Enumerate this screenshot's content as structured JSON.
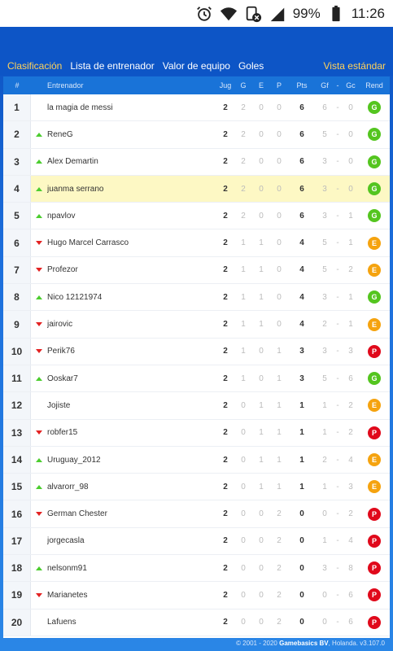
{
  "status_bar": {
    "battery": "99%",
    "time": "11:26",
    "icons": [
      "alarm-icon",
      "wifi-icon",
      "notification-blocked-icon",
      "cell-signal-icon",
      "battery-icon"
    ]
  },
  "nav": {
    "tabs": [
      "Clasificación",
      "Lista de entrenador",
      "Valor de equipo",
      "Goles"
    ],
    "active_tab": "Clasificación",
    "right_link": "Vista estándar"
  },
  "table": {
    "headers": {
      "pos": "#",
      "name": "Entrenador",
      "jug": "Jug",
      "g": "G",
      "e": "E",
      "p": "P",
      "pts": "Pts",
      "gf": "Gf",
      "sep": "-",
      "gc": "Gc",
      "rend": "Rend"
    },
    "rows": [
      {
        "pos": "1",
        "trend": "none",
        "name": "la magia de messi",
        "jug": "2",
        "g": "2",
        "e": "0",
        "p": "0",
        "pts": "6",
        "gf": "6",
        "gc": "0",
        "rend": "G"
      },
      {
        "pos": "2",
        "trend": "up",
        "name": "ReneG",
        "jug": "2",
        "g": "2",
        "e": "0",
        "p": "0",
        "pts": "6",
        "gf": "5",
        "gc": "0",
        "rend": "G"
      },
      {
        "pos": "3",
        "trend": "up",
        "name": "Alex Demartin",
        "jug": "2",
        "g": "2",
        "e": "0",
        "p": "0",
        "pts": "6",
        "gf": "3",
        "gc": "0",
        "rend": "G"
      },
      {
        "pos": "4",
        "trend": "up",
        "name": "juanma serrano",
        "jug": "2",
        "g": "2",
        "e": "0",
        "p": "0",
        "pts": "6",
        "gf": "3",
        "gc": "0",
        "rend": "G",
        "highlight": true
      },
      {
        "pos": "5",
        "trend": "up",
        "name": "npavlov",
        "jug": "2",
        "g": "2",
        "e": "0",
        "p": "0",
        "pts": "6",
        "gf": "3",
        "gc": "1",
        "rend": "G"
      },
      {
        "pos": "6",
        "trend": "down",
        "name": "Hugo Marcel Carrasco",
        "jug": "2",
        "g": "1",
        "e": "1",
        "p": "0",
        "pts": "4",
        "gf": "5",
        "gc": "1",
        "rend": "E"
      },
      {
        "pos": "7",
        "trend": "down",
        "name": "Profezor",
        "jug": "2",
        "g": "1",
        "e": "1",
        "p": "0",
        "pts": "4",
        "gf": "5",
        "gc": "2",
        "rend": "E"
      },
      {
        "pos": "8",
        "trend": "up",
        "name": "Nico 12121974",
        "jug": "2",
        "g": "1",
        "e": "1",
        "p": "0",
        "pts": "4",
        "gf": "3",
        "gc": "1",
        "rend": "G"
      },
      {
        "pos": "9",
        "trend": "down",
        "name": "jairovic",
        "jug": "2",
        "g": "1",
        "e": "1",
        "p": "0",
        "pts": "4",
        "gf": "2",
        "gc": "1",
        "rend": "E"
      },
      {
        "pos": "10",
        "trend": "down",
        "name": "Perik76",
        "jug": "2",
        "g": "1",
        "e": "0",
        "p": "1",
        "pts": "3",
        "gf": "3",
        "gc": "3",
        "rend": "P"
      },
      {
        "pos": "11",
        "trend": "up",
        "name": "Ooskar7",
        "jug": "2",
        "g": "1",
        "e": "0",
        "p": "1",
        "pts": "3",
        "gf": "5",
        "gc": "6",
        "rend": "G"
      },
      {
        "pos": "12",
        "trend": "none",
        "name": "Jojiste",
        "jug": "2",
        "g": "0",
        "e": "1",
        "p": "1",
        "pts": "1",
        "gf": "1",
        "gc": "2",
        "rend": "E"
      },
      {
        "pos": "13",
        "trend": "down",
        "name": "robfer15",
        "jug": "2",
        "g": "0",
        "e": "1",
        "p": "1",
        "pts": "1",
        "gf": "1",
        "gc": "2",
        "rend": "P"
      },
      {
        "pos": "14",
        "trend": "up",
        "name": "Uruguay_2012",
        "jug": "2",
        "g": "0",
        "e": "1",
        "p": "1",
        "pts": "1",
        "gf": "2",
        "gc": "4",
        "rend": "E"
      },
      {
        "pos": "15",
        "trend": "up",
        "name": "alvarorr_98",
        "jug": "2",
        "g": "0",
        "e": "1",
        "p": "1",
        "pts": "1",
        "gf": "1",
        "gc": "3",
        "rend": "E"
      },
      {
        "pos": "16",
        "trend": "down",
        "name": "German Chester",
        "jug": "2",
        "g": "0",
        "e": "0",
        "p": "2",
        "pts": "0",
        "gf": "0",
        "gc": "2",
        "rend": "P"
      },
      {
        "pos": "17",
        "trend": "none",
        "name": "jorgecasla",
        "jug": "2",
        "g": "0",
        "e": "0",
        "p": "2",
        "pts": "0",
        "gf": "1",
        "gc": "4",
        "rend": "P"
      },
      {
        "pos": "18",
        "trend": "up",
        "name": "nelsonm91",
        "jug": "2",
        "g": "0",
        "e": "0",
        "p": "2",
        "pts": "0",
        "gf": "3",
        "gc": "8",
        "rend": "P"
      },
      {
        "pos": "19",
        "trend": "down",
        "name": "Marianetes",
        "jug": "2",
        "g": "0",
        "e": "0",
        "p": "2",
        "pts": "0",
        "gf": "0",
        "gc": "6",
        "rend": "P"
      },
      {
        "pos": "20",
        "trend": "none",
        "name": "Lafuens",
        "jug": "2",
        "g": "0",
        "e": "0",
        "p": "2",
        "pts": "0",
        "gf": "0",
        "gc": "6",
        "rend": "P"
      }
    ]
  },
  "colors": {
    "badge_G": "#54c51f",
    "badge_E": "#f5a30f",
    "badge_P": "#e0091b",
    "trend_up": "#4ccd2f",
    "trend_down": "#e32222",
    "highlight_row": "#fdf8c4"
  },
  "footer": {
    "prefix": "© 2001 - 2020",
    "brand": "Gamebasics BV",
    "suffix": ", Holanda. v3.107.0"
  }
}
